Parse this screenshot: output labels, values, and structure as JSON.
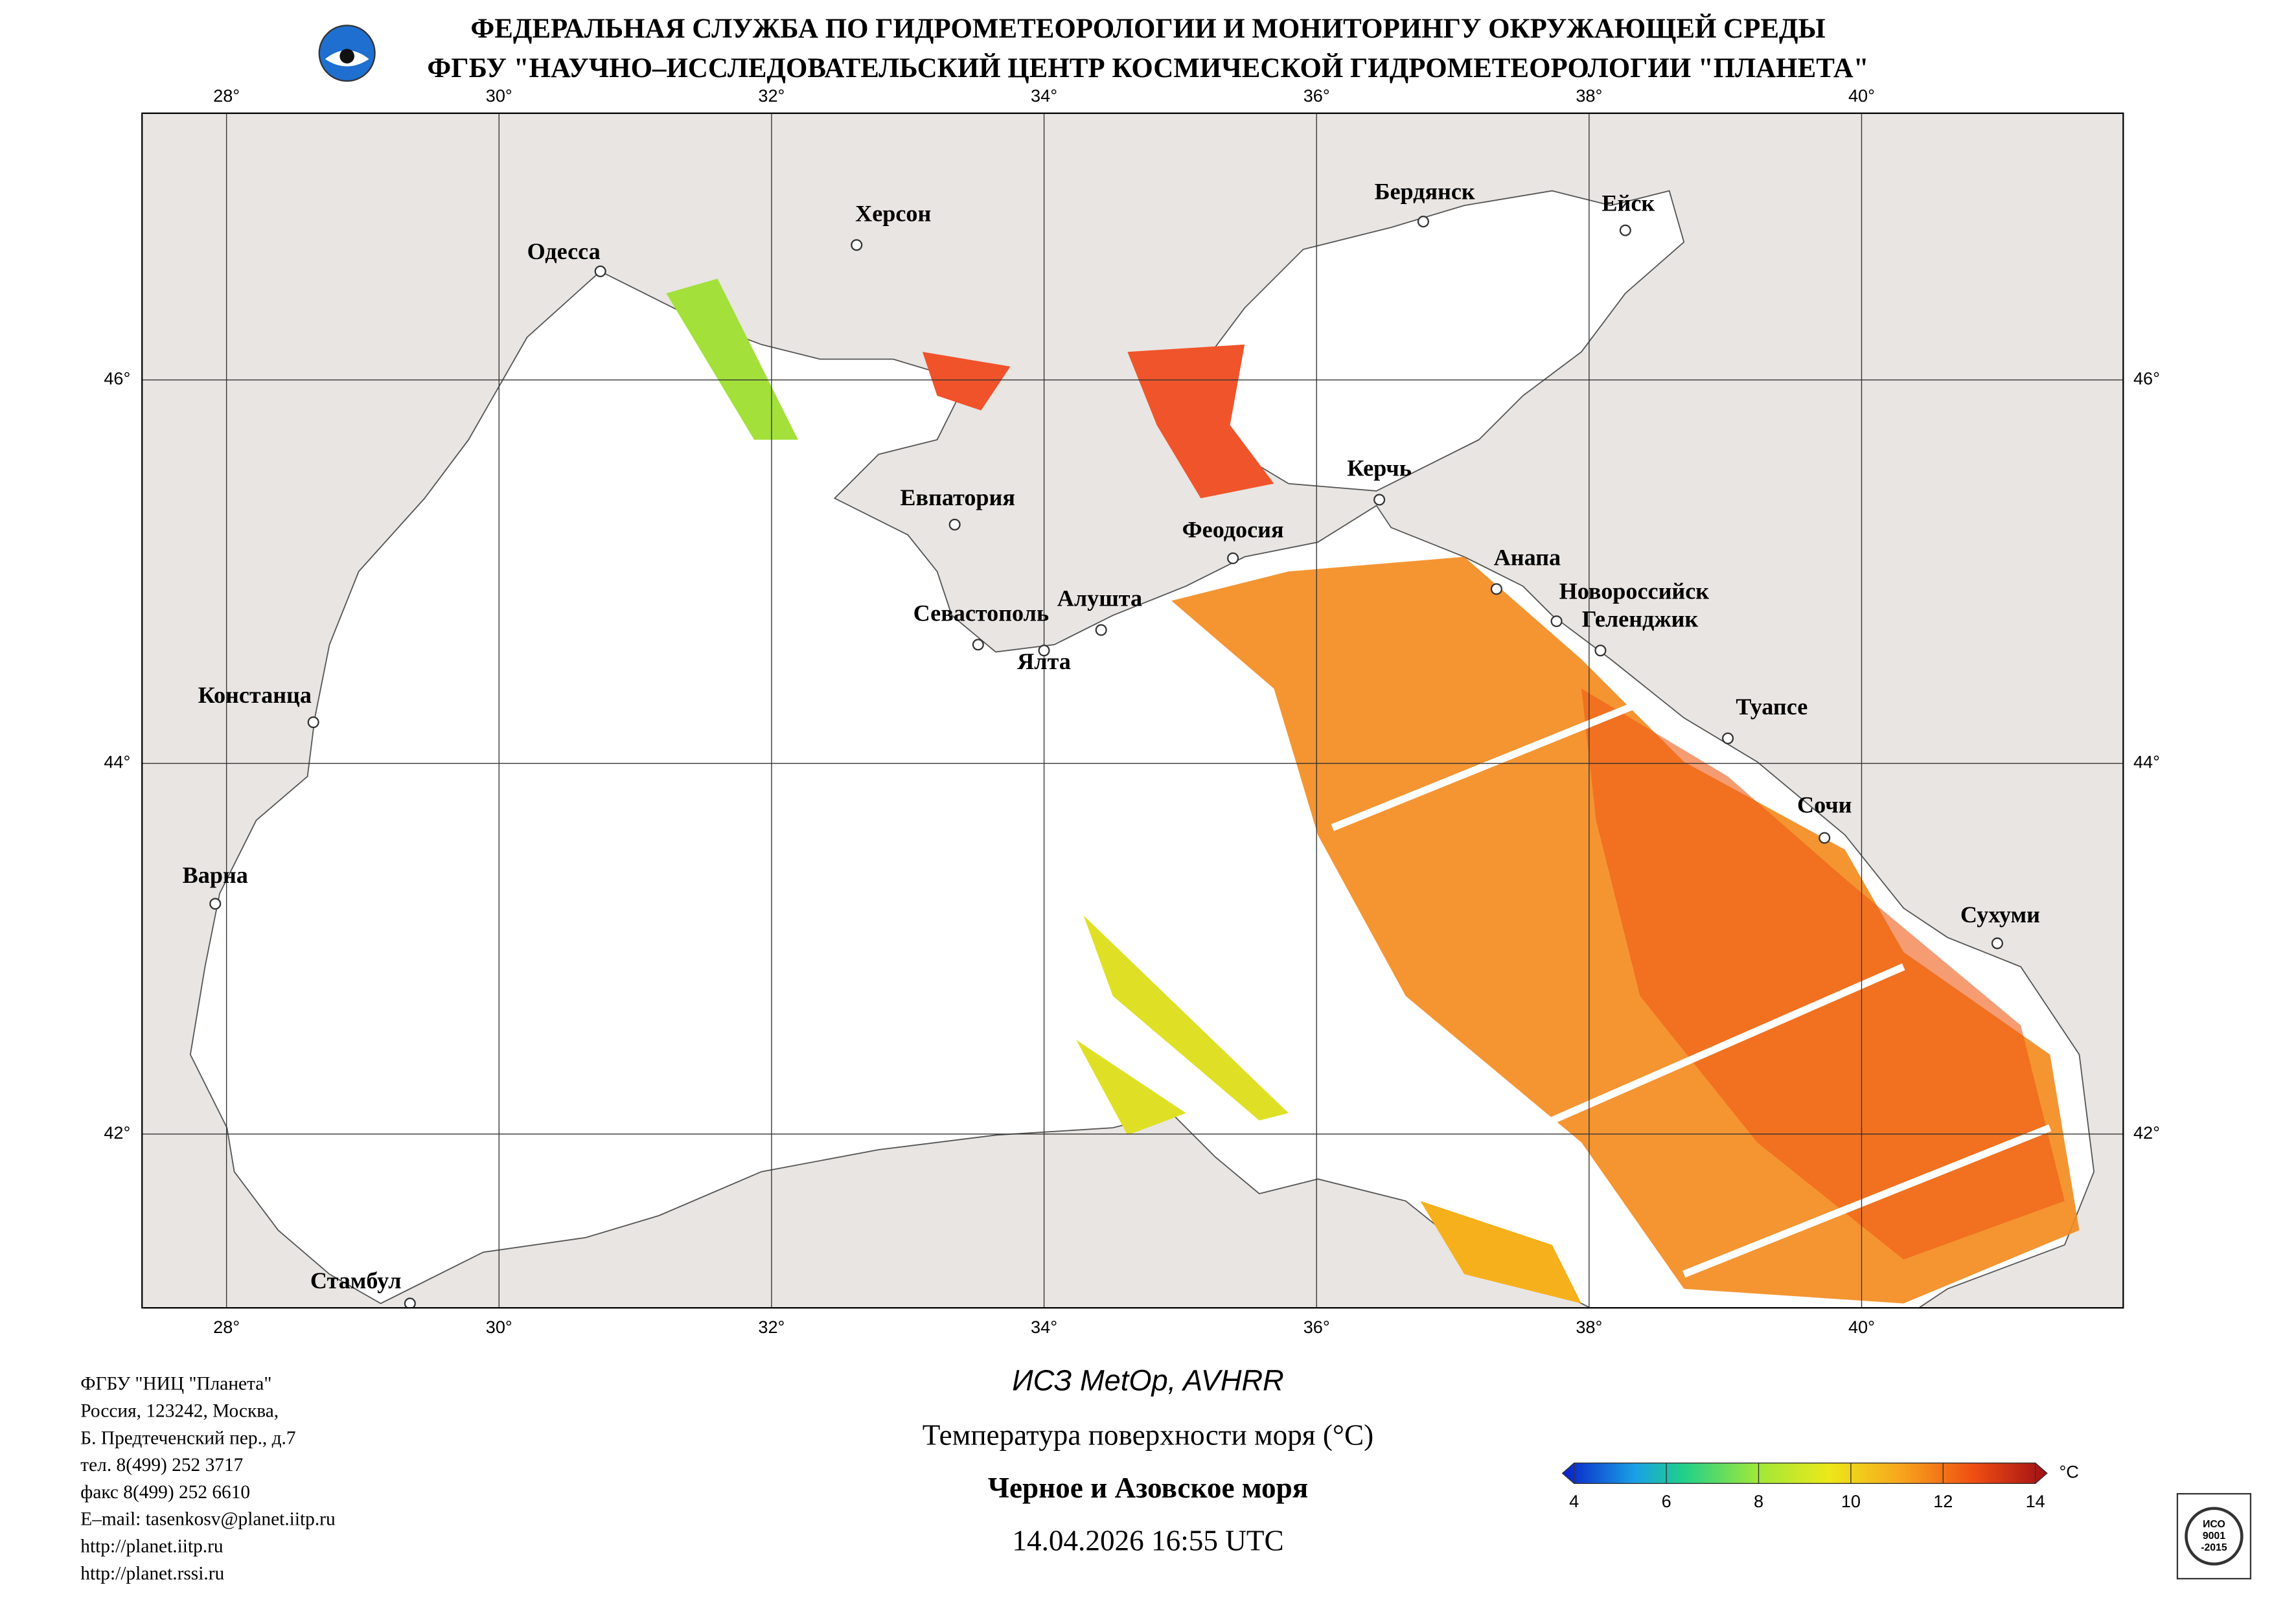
{
  "header": {
    "line1": "ФЕДЕРАЛЬНАЯ СЛУЖБА ПО ГИДРОМЕТЕОРОЛОГИИ И МОНИТОРИНГУ ОКРУЖАЮЩЕЙ СРЕДЫ",
    "line2": "ФГБУ \"НАУЧНО–ИССЛЕДОВАТЕЛЬСКИЙ ЦЕНТР КОСМИЧЕСКОЙ ГИДРОМЕТЕОРОЛОГИИ \"ПЛАНЕТА\""
  },
  "map": {
    "lon_range": [
      27.38,
      41.92
    ],
    "lat_range": [
      41.04,
      47.35
    ],
    "lon_ticks": [
      {
        "value": 28,
        "label": "28°"
      },
      {
        "value": 30,
        "label": "30°"
      },
      {
        "value": 32,
        "label": "32°"
      },
      {
        "value": 34,
        "label": "34°"
      },
      {
        "value": 36,
        "label": "36°"
      },
      {
        "value": 38,
        "label": "38°"
      },
      {
        "value": 40,
        "label": "40°"
      }
    ],
    "lat_ticks": [
      {
        "value": 42,
        "label": "42°"
      },
      {
        "value": 44,
        "label": "44°"
      },
      {
        "value": 46,
        "label": "46°"
      }
    ],
    "cities": [
      "Одесса",
      "Херсон",
      "Бердянск",
      "Ейск",
      "Евпатория",
      "Феодосия",
      "Керчь",
      "Анапа",
      "Новороссийск",
      "Геленджик",
      "Севастополь",
      "Алушта",
      "Ялта",
      "Туапсе",
      "Сочи",
      "Сухуми",
      "Констанца",
      "Варна",
      "Стамбул"
    ]
  },
  "address": [
    "ФГБУ \"НИЦ \"Планета\"",
    "Россия, 123242, Москва,",
    "Б. Предтеченский пер., д.7",
    "тел. 8(499) 252 3717",
    "факс 8(499) 252 6610",
    "E–mail: tasenkosv@planet.iitp.ru",
    "http://planet.iitp.ru",
    "http://planet.rssi.ru"
  ],
  "caption": {
    "satellite": "ИСЗ MetOp, AVHRR",
    "parameter": "Температура поверхности моря (°C)",
    "region": "Черное и Азовское моря",
    "datetime": "14.04.2026 16:55 UTC"
  },
  "colorbar": {
    "ticks": [
      4,
      6,
      8,
      10,
      12,
      14
    ],
    "unit": "°C"
  },
  "certificate": [
    "ИСО",
    "9001",
    "-2015"
  ]
}
